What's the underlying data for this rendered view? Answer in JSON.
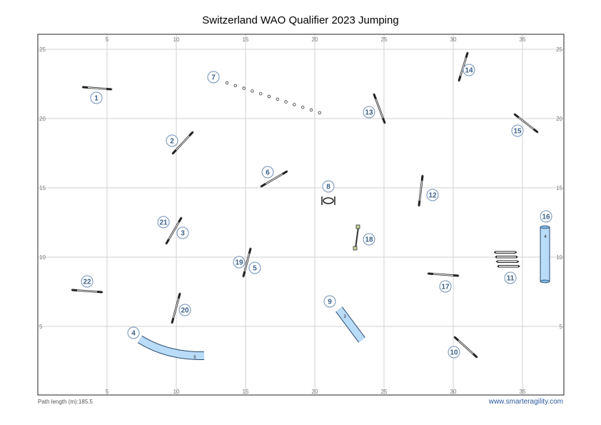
{
  "header": {
    "title": "Switzerland WAO Qualifier 2023 Jumping"
  },
  "footer": {
    "path_length": "Path length (m):185.5",
    "website": "www.smarteragility.com"
  },
  "axes": {
    "x_ticks": [
      "5",
      "10",
      "15",
      "20",
      "25",
      "30",
      "35"
    ],
    "y_ticks": [
      "25",
      "20",
      "15",
      "10",
      "5"
    ]
  },
  "obstacles": [
    {
      "num": "1",
      "type": "hurdle"
    },
    {
      "num": "2",
      "type": "hurdle"
    },
    {
      "num": "3",
      "type": "hurdle"
    },
    {
      "num": "4",
      "type": "tunnel",
      "tunnel_label": "5"
    },
    {
      "num": "5",
      "type": "hurdle"
    },
    {
      "num": "6",
      "type": "hurdle"
    },
    {
      "num": "7",
      "type": "weave"
    },
    {
      "num": "8",
      "type": "tyre"
    },
    {
      "num": "9",
      "type": "tunnel",
      "tunnel_label": "3"
    },
    {
      "num": "10",
      "type": "hurdle"
    },
    {
      "num": "11",
      "type": "long-jump"
    },
    {
      "num": "12",
      "type": "hurdle"
    },
    {
      "num": "13",
      "type": "hurdle"
    },
    {
      "num": "14",
      "type": "hurdle"
    },
    {
      "num": "15",
      "type": "hurdle"
    },
    {
      "num": "16",
      "type": "tunnel",
      "tunnel_label": "4"
    },
    {
      "num": "17",
      "type": "hurdle"
    },
    {
      "num": "18",
      "type": "wall"
    },
    {
      "num": "19",
      "type": "hurdle"
    },
    {
      "num": "20",
      "type": "hurdle"
    },
    {
      "num": "21",
      "type": "hurdle"
    },
    {
      "num": "22",
      "type": "hurdle"
    }
  ]
}
